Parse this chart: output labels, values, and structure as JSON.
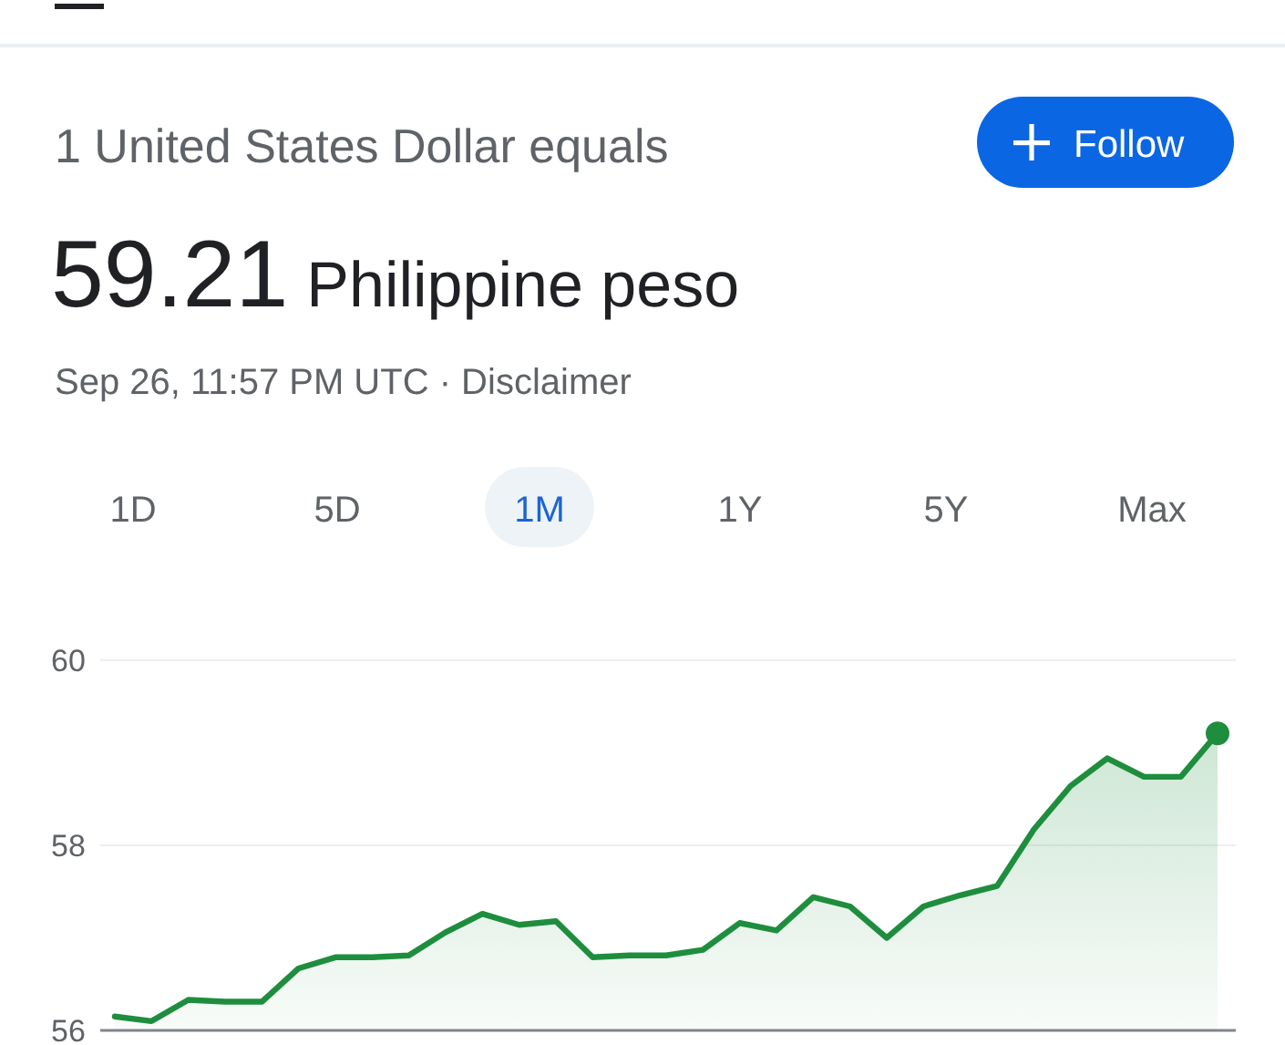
{
  "chart_data": {
    "type": "area",
    "title": "1 United States Dollar equals",
    "subtitle": "59.21 Philippine peso",
    "annotations": [
      "Sep 26, 11:57 PM UTC · Disclaimer",
      "Follow",
      "1D",
      "5D",
      "1M",
      "1Y",
      "5Y",
      "Max"
    ],
    "categories": [
      null,
      null,
      null,
      null,
      null,
      null,
      null,
      null,
      null,
      null,
      null,
      null,
      null,
      null,
      null,
      null,
      null,
      null,
      null,
      null,
      null,
      null,
      null,
      null,
      null,
      null,
      null,
      null,
      null,
      null,
      null
    ],
    "series": [
      {
        "color": "#1e8e3e",
        "values": [
          56.15,
          56.1,
          56.33,
          56.31,
          56.31,
          56.67,
          56.79,
          56.79,
          56.81,
          57.06,
          57.26,
          57.14,
          57.18,
          56.79,
          56.81,
          56.81,
          56.87,
          57.16,
          57.08,
          57.44,
          57.34,
          57.0,
          57.34,
          57.46,
          57.56,
          58.17,
          58.64,
          58.94,
          58.74,
          58.74,
          59.21
        ]
      }
    ],
    "ylim": [
      56,
      60
    ],
    "yticks": [
      56,
      58,
      60
    ],
    "grid": "y"
  }
}
